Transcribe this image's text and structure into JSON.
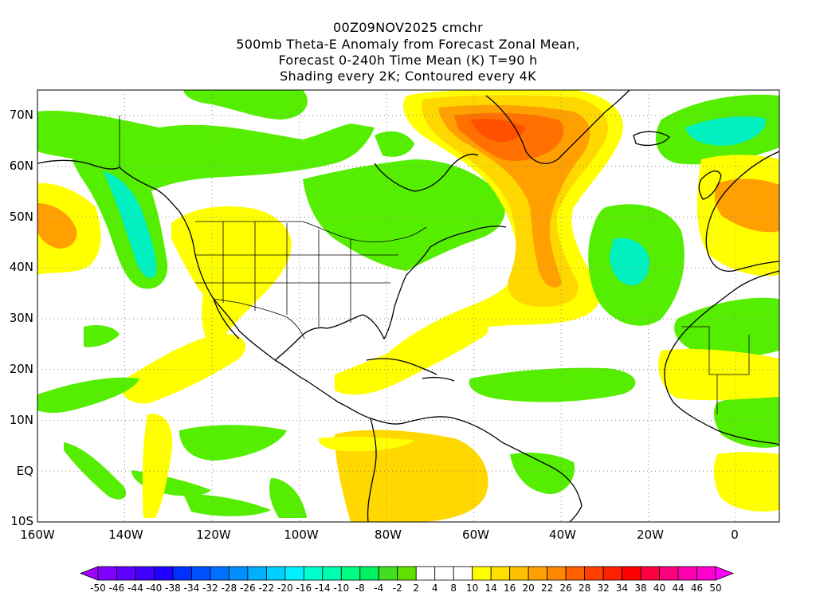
{
  "title": {
    "line1": "00Z09NOV2025 cmchr",
    "line2": "500mb Theta-E Anomaly from Forecast Zonal Mean,",
    "line3": "Forecast 0-240h Time Mean (K) T=90 h",
    "line4": "Shading every 2K; Contoured every 4K"
  },
  "axes": {
    "y_labels": [
      "70N",
      "60N",
      "50N",
      "40N",
      "30N",
      "20N",
      "10N",
      "EQ",
      "10S"
    ],
    "x_labels": [
      "160W",
      "140W",
      "120W",
      "100W",
      "80W",
      "60W",
      "40W",
      "20W",
      "0"
    ],
    "lon_range": [
      -160,
      10
    ],
    "lat_range": [
      -10,
      75
    ],
    "grid": "dotted"
  },
  "colorbar": {
    "labels": [
      "-50",
      "-46",
      "-44",
      "-40",
      "-38",
      "-34",
      "-32",
      "-28",
      "-26",
      "-22",
      "-20",
      "-16",
      "-14",
      "-10",
      "-8",
      "-4",
      "-2",
      "2",
      "4",
      "8",
      "10",
      "14",
      "16",
      "20",
      "22",
      "26",
      "28",
      "32",
      "34",
      "38",
      "40",
      "44",
      "46",
      "50"
    ],
    "colors": [
      "#a000ff",
      "#8000ff",
      "#6000ff",
      "#4000ff",
      "#2000ff",
      "#0030ff",
      "#0050ff",
      "#0070ff",
      "#0090ff",
      "#00b0ff",
      "#00d0ff",
      "#00f0ff",
      "#00ffd0",
      "#00ffb0",
      "#00ff80",
      "#00f060",
      "#40e020",
      "#60e000",
      "#ffffff",
      "#ffffff",
      "#ffffff",
      "#ffff00",
      "#ffe000",
      "#ffc000",
      "#ffa000",
      "#ff8800",
      "#ff6000",
      "#ff4000",
      "#ff2000",
      "#ff0000",
      "#ff0040",
      "#ff0080",
      "#ff00b0",
      "#ff00d0",
      "#ff00ff"
    ]
  },
  "palette": {
    "green": "#55ee00",
    "green_light": "#00f070",
    "teal": "#00f0c0",
    "yellow": "#ffff00",
    "gold": "#ffd800",
    "orange": "#ffa000",
    "dark_orange": "#ff7000",
    "red_orange": "#ff5000"
  }
}
